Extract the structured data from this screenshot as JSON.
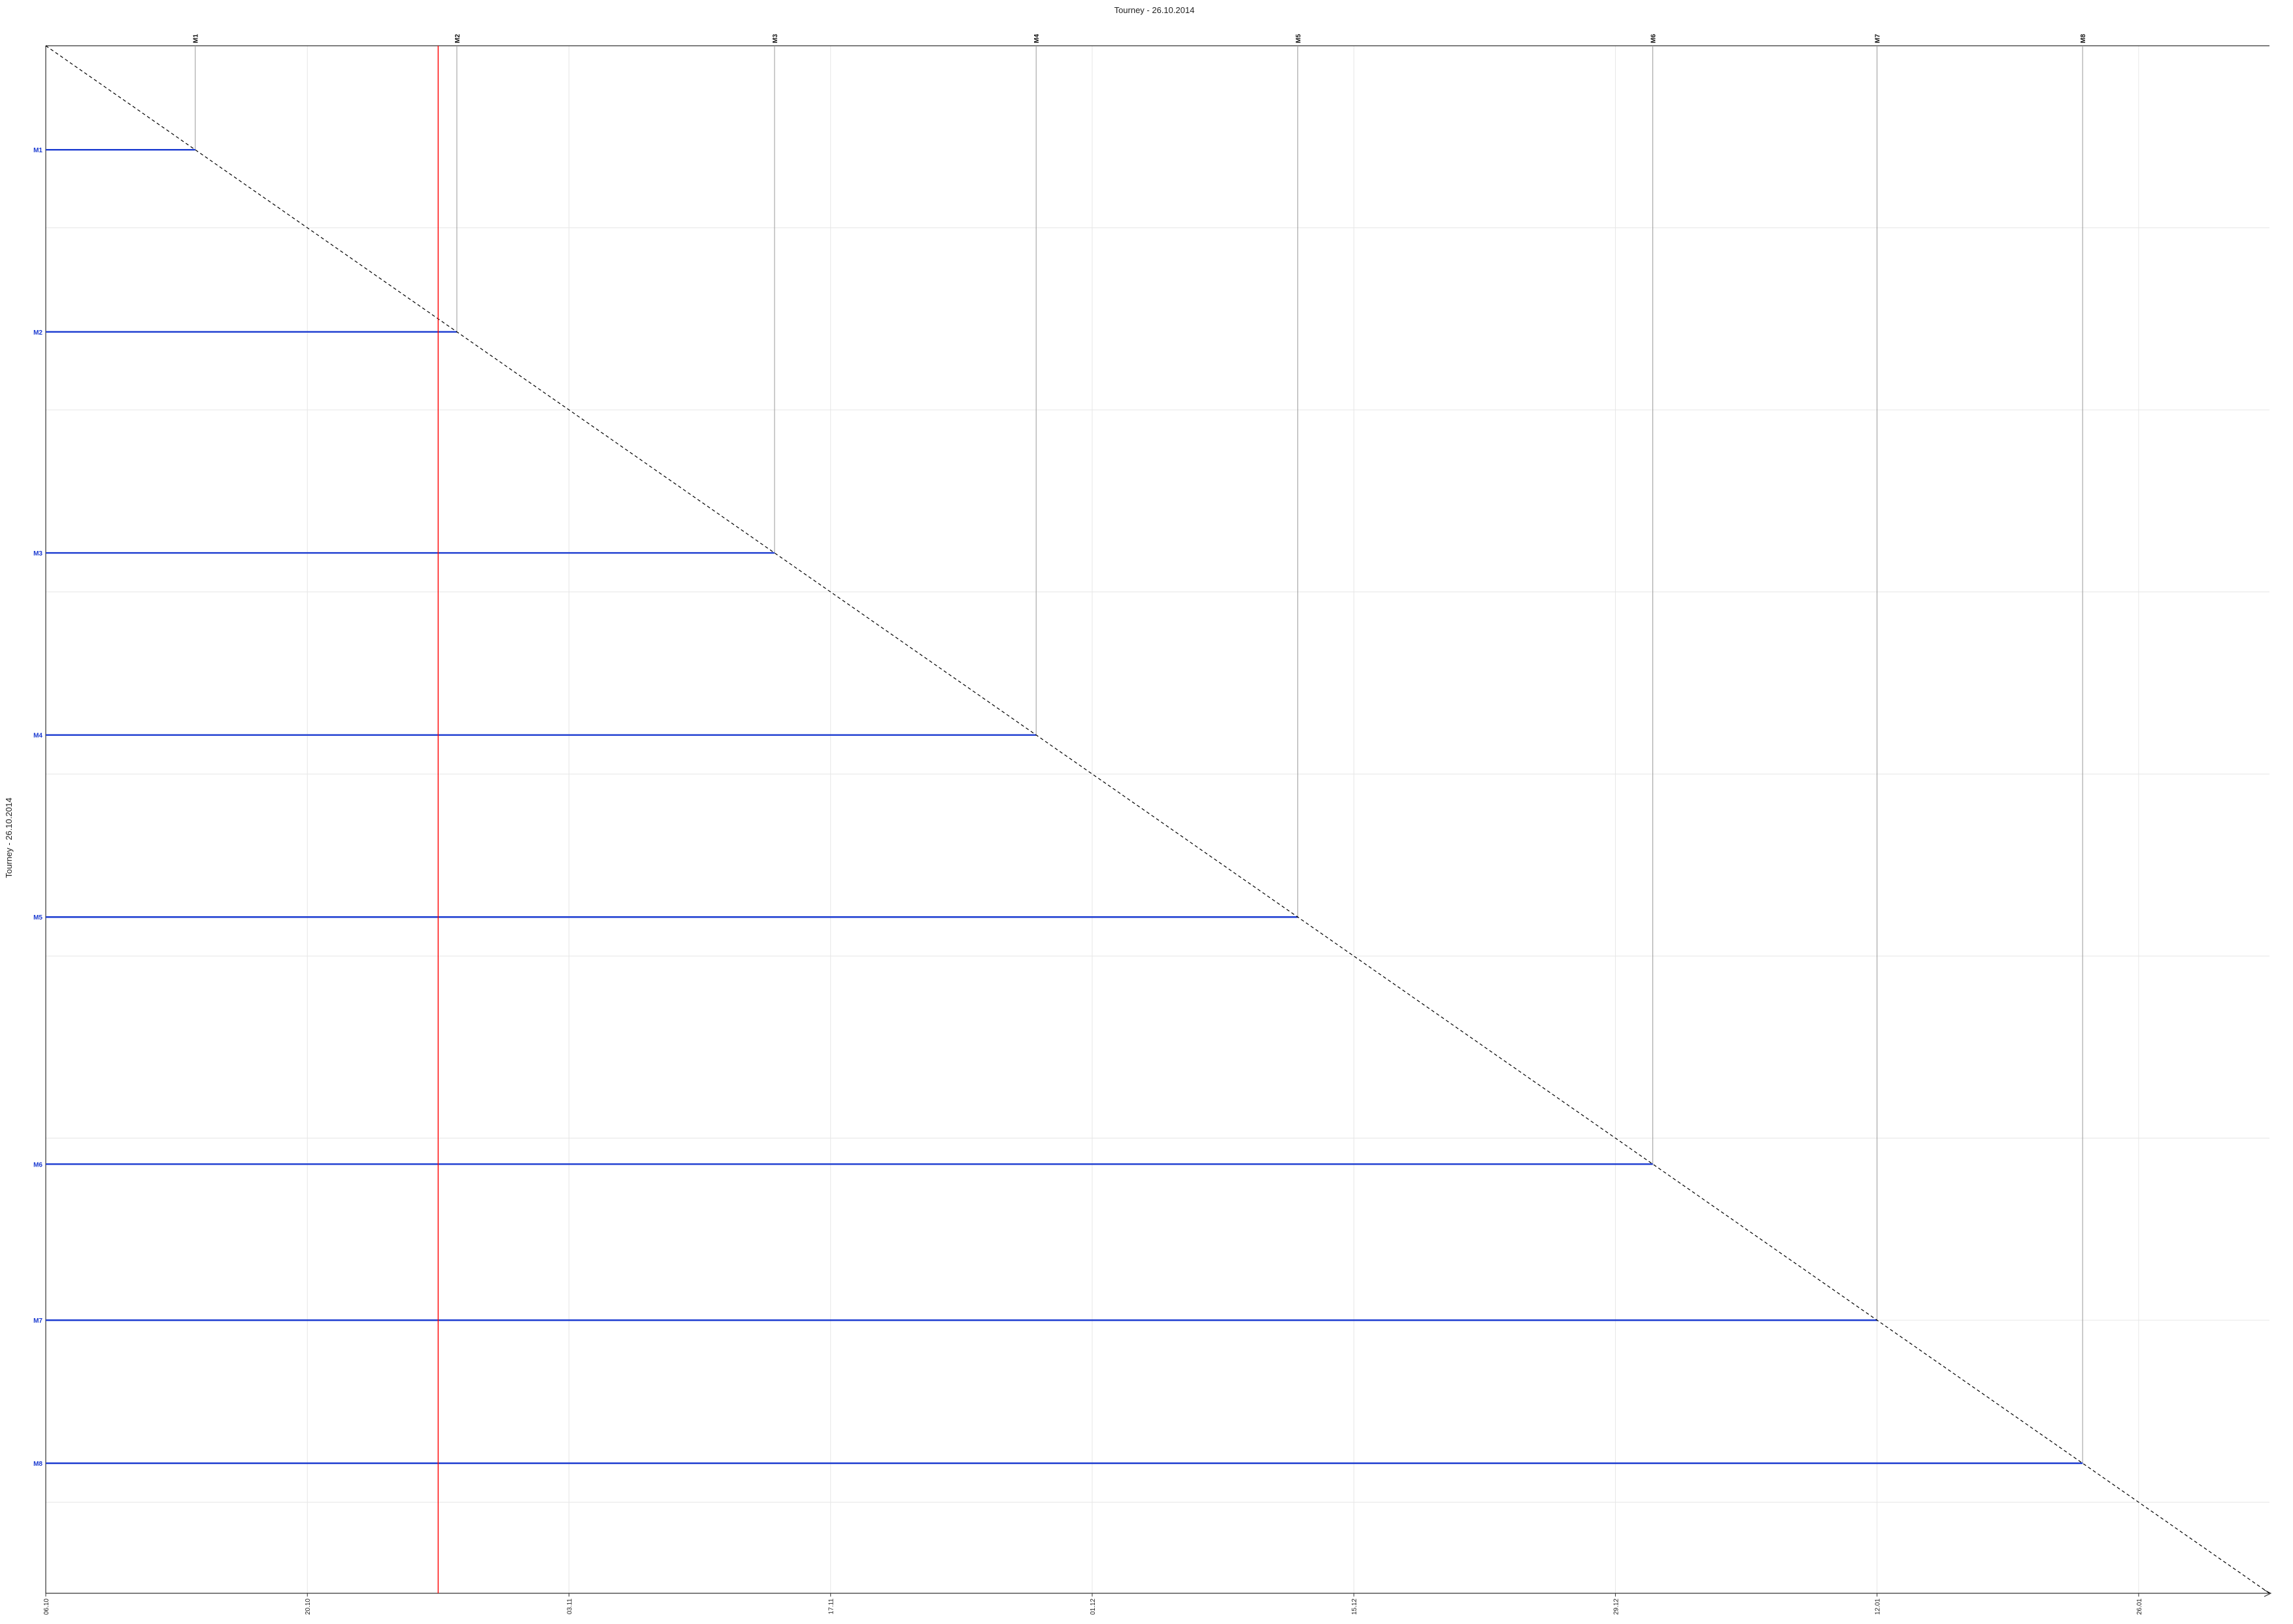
{
  "chart_data": {
    "type": "line",
    "title": "Tourney - 26.10.2014",
    "ylabel": "Tourney - 26.10.2014",
    "x_ticks": [
      "06.10",
      "20.10",
      "03.11",
      "17.11",
      "01.12",
      "15.12",
      "29.12",
      "12.01",
      "26.01"
    ],
    "x_range": [
      "06.10.2014",
      "02.02.2015"
    ],
    "today_marker": "27.10.2014",
    "grid": true,
    "milestones": [
      {
        "name": "M1",
        "date": "14.10.2014"
      },
      {
        "name": "M2",
        "date": "28.10.2014"
      },
      {
        "name": "M3",
        "date": "14.11.2014"
      },
      {
        "name": "M4",
        "date": "28.11.2014"
      },
      {
        "name": "M5",
        "date": "12.12.2014"
      },
      {
        "name": "M6",
        "date": "31.12.2014"
      },
      {
        "name": "M7",
        "date": "12.01.2015"
      },
      {
        "name": "M8",
        "date": "23.01.2015"
      }
    ],
    "colors": {
      "milestone_line": "#1a3ad0",
      "today_line": "#ff0000",
      "grid": "#e6e6e6",
      "diagonal": "#000000",
      "vertical": "#999999"
    }
  }
}
